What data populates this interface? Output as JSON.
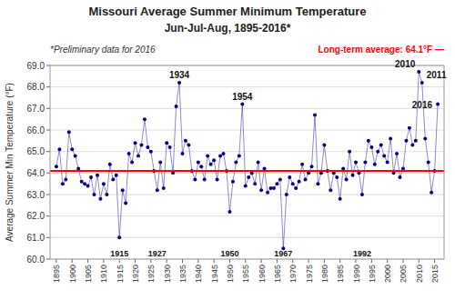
{
  "chart_data": {
    "type": "line",
    "title": "Missouri Average Summer Minimum Temperature",
    "subtitle": "Jun-Jul-Aug, 1895-2016*",
    "y_label": "Average Summer Min Temperature (°F)",
    "note": "*Preliminary  data  for 2016",
    "x": [
      1895,
      1896,
      1897,
      1898,
      1899,
      1900,
      1901,
      1902,
      1903,
      1904,
      1905,
      1906,
      1907,
      1908,
      1909,
      1910,
      1911,
      1912,
      1913,
      1914,
      1915,
      1916,
      1917,
      1918,
      1919,
      1920,
      1921,
      1922,
      1923,
      1924,
      1925,
      1926,
      1927,
      1928,
      1929,
      1930,
      1931,
      1932,
      1933,
      1934,
      1935,
      1936,
      1937,
      1938,
      1939,
      1940,
      1941,
      1942,
      1943,
      1944,
      1945,
      1946,
      1947,
      1948,
      1949,
      1950,
      1951,
      1952,
      1953,
      1954,
      1955,
      1956,
      1957,
      1958,
      1959,
      1960,
      1961,
      1962,
      1963,
      1964,
      1965,
      1966,
      1967,
      1968,
      1969,
      1970,
      1971,
      1972,
      1973,
      1974,
      1975,
      1976,
      1977,
      1978,
      1979,
      1980,
      1981,
      1982,
      1983,
      1984,
      1985,
      1986,
      1987,
      1988,
      1989,
      1990,
      1991,
      1992,
      1993,
      1994,
      1995,
      1996,
      1997,
      1998,
      1999,
      2000,
      2001,
      2002,
      2003,
      2004,
      2005,
      2006,
      2007,
      2008,
      2009,
      2010,
      2011,
      2012,
      2013,
      2014,
      2015,
      2016
    ],
    "series": [
      {
        "color": "#00008B",
        "marker": "circle",
        "values": [
          64.3,
          65.1,
          63.5,
          63.7,
          65.9,
          65.1,
          64.8,
          64.2,
          63.6,
          63.5,
          63.4,
          63.8,
          63.0,
          63.9,
          62.8,
          63.5,
          63.0,
          64.4,
          63.7,
          63.9,
          61.0,
          63.2,
          62.6,
          64.9,
          64.5,
          65.4,
          64.8,
          65.3,
          66.5,
          65.2,
          65.0,
          64.1,
          63.2,
          64.5,
          63.3,
          65.4,
          65.2,
          64.0,
          67.1,
          68.2,
          64.9,
          65.5,
          65.3,
          64.1,
          63.7,
          64.5,
          64.3,
          63.7,
          64.8,
          64.4,
          64.6,
          63.7,
          64.8,
          64.9,
          64.1,
          62.2,
          63.6,
          64.5,
          64.8,
          67.2,
          63.4,
          63.8,
          64.0,
          63.5,
          64.5,
          63.2,
          64.2,
          63.1,
          63.3,
          63.3,
          63.5,
          63.7,
          60.5,
          63.0,
          63.8,
          63.5,
          63.3,
          63.6,
          64.4,
          63.7,
          64.0,
          64.3,
          66.7,
          63.5,
          64.0,
          65.3,
          64.1,
          63.2,
          64.0,
          63.8,
          62.8,
          64.2,
          63.7,
          65.0,
          63.9,
          64.5,
          64.0,
          63.0,
          64.5,
          65.5,
          65.2,
          64.4,
          65.0,
          65.3,
          64.8,
          64.5,
          65.6,
          64.0,
          64.9,
          63.8,
          64.2,
          65.5,
          66.1,
          65.3,
          65.5,
          68.7,
          68.2,
          65.6,
          64.5,
          63.1,
          64.1,
          67.2
        ]
      }
    ],
    "average": {
      "value": 64.1,
      "label": "Long-term average: 64.1°F  —",
      "color": "#FF0000"
    },
    "annotations": [
      {
        "x": 1934,
        "label": "1934"
      },
      {
        "x": 1954,
        "label": "1954"
      },
      {
        "x": 2010,
        "label": "2010"
      },
      {
        "x": 2011,
        "label": "2011"
      },
      {
        "x": 2016,
        "label": "2016"
      }
    ],
    "low_annotations": [
      {
        "x": 1915,
        "label": "1915"
      },
      {
        "x": 1927,
        "label": "1927"
      },
      {
        "x": 1950,
        "label": "1950"
      },
      {
        "x": 1967,
        "label": "1967"
      },
      {
        "x": 1992,
        "label": "1992"
      }
    ],
    "xlim": [
      1893,
      2018
    ],
    "xticks": [
      1895,
      1900,
      1905,
      1910,
      1915,
      1920,
      1925,
      1930,
      1935,
      1940,
      1945,
      1950,
      1955,
      1960,
      1965,
      1970,
      1975,
      1980,
      1985,
      1990,
      1995,
      2000,
      2005,
      2010,
      2015
    ],
    "ylim": [
      60.0,
      69.0
    ],
    "yticks": [
      {
        "value": 60.0,
        "label": "60.0"
      },
      {
        "value": 61.0,
        "label": "61.0"
      },
      {
        "value": 62.0,
        "label": "62.0"
      },
      {
        "value": 63.0,
        "label": "63.0"
      },
      {
        "value": 64.0,
        "label": "64.0"
      },
      {
        "value": 65.0,
        "label": "65.0"
      },
      {
        "value": 66.0,
        "label": "66.0"
      },
      {
        "value": 67.0,
        "label": "67.0"
      },
      {
        "value": 68.0,
        "label": "68.0"
      },
      {
        "value": 69.0,
        "label": "69.0"
      }
    ],
    "grid": true
  }
}
